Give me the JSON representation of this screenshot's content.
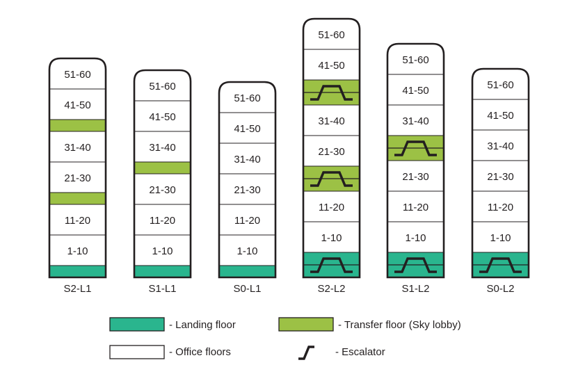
{
  "colors": {
    "landing": "#2ab58e",
    "transfer": "#9cc145",
    "office": "#ffffff",
    "outline": "#231f20"
  },
  "towers": [
    {
      "name": "S2-L1",
      "floors": [
        {
          "type": "landing"
        },
        {
          "type": "office",
          "label": "1-10"
        },
        {
          "type": "office",
          "label": "11-20"
        },
        {
          "type": "transfer",
          "escalator": false
        },
        {
          "type": "office",
          "label": "21-30"
        },
        {
          "type": "office",
          "label": "31-40"
        },
        {
          "type": "transfer",
          "escalator": false
        },
        {
          "type": "office",
          "label": "41-50"
        },
        {
          "type": "office",
          "label": "51-60"
        }
      ]
    },
    {
      "name": "S1-L1",
      "floors": [
        {
          "type": "landing"
        },
        {
          "type": "office",
          "label": "1-10"
        },
        {
          "type": "office",
          "label": "11-20"
        },
        {
          "type": "office",
          "label": "21-30"
        },
        {
          "type": "transfer",
          "escalator": false
        },
        {
          "type": "office",
          "label": "31-40"
        },
        {
          "type": "office",
          "label": "41-50"
        },
        {
          "type": "office",
          "label": "51-60"
        }
      ]
    },
    {
      "name": "S0-L1",
      "floors": [
        {
          "type": "landing"
        },
        {
          "type": "office",
          "label": "1-10"
        },
        {
          "type": "office",
          "label": "11-20"
        },
        {
          "type": "office",
          "label": "21-30"
        },
        {
          "type": "office",
          "label": "31-40"
        },
        {
          "type": "office",
          "label": "41-50"
        },
        {
          "type": "office",
          "label": "51-60"
        }
      ]
    },
    {
      "name": "S2-L2",
      "floors": [
        {
          "type": "landing",
          "escalator": true
        },
        {
          "type": "office",
          "label": "1-10"
        },
        {
          "type": "office",
          "label": "11-20"
        },
        {
          "type": "transfer",
          "escalator": true
        },
        {
          "type": "office",
          "label": "21-30"
        },
        {
          "type": "office",
          "label": "31-40"
        },
        {
          "type": "transfer",
          "escalator": true
        },
        {
          "type": "office",
          "label": "41-50"
        },
        {
          "type": "office",
          "label": "51-60"
        }
      ]
    },
    {
      "name": "S1-L2",
      "floors": [
        {
          "type": "landing",
          "escalator": true
        },
        {
          "type": "office",
          "label": "1-10"
        },
        {
          "type": "office",
          "label": "11-20"
        },
        {
          "type": "office",
          "label": "21-30"
        },
        {
          "type": "transfer",
          "escalator": true
        },
        {
          "type": "office",
          "label": "31-40"
        },
        {
          "type": "office",
          "label": "41-50"
        },
        {
          "type": "office",
          "label": "51-60"
        }
      ]
    },
    {
      "name": "S0-L2",
      "floors": [
        {
          "type": "landing",
          "escalator": true
        },
        {
          "type": "office",
          "label": "1-10"
        },
        {
          "type": "office",
          "label": "11-20"
        },
        {
          "type": "office",
          "label": "21-30"
        },
        {
          "type": "office",
          "label": "31-40"
        },
        {
          "type": "office",
          "label": "41-50"
        },
        {
          "type": "office",
          "label": "51-60"
        }
      ]
    }
  ],
  "legend": {
    "landing": "- Landing floor",
    "transfer": "- Transfer floor (Sky lobby)",
    "office": "- Office floors",
    "escalator": "- Escalator"
  }
}
